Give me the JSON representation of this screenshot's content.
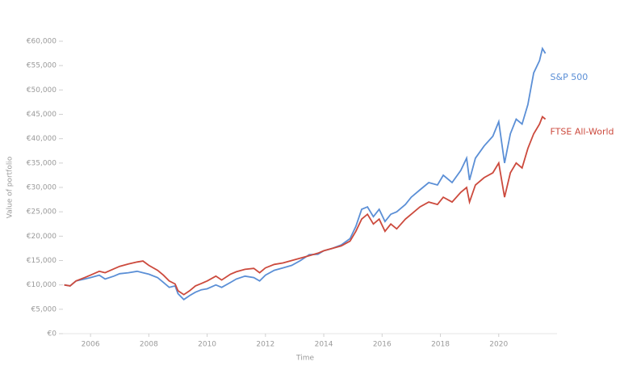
{
  "chart_data": {
    "type": "line",
    "x_label": "Time",
    "y_label": "Value of portfolio",
    "x": [
      2005.1,
      2005.3,
      2005.5,
      2005.8,
      2006.0,
      2006.3,
      2006.5,
      2006.8,
      2007.0,
      2007.3,
      2007.6,
      2007.8,
      2008.0,
      2008.3,
      2008.5,
      2008.7,
      2008.9,
      2009.0,
      2009.2,
      2009.4,
      2009.6,
      2009.8,
      2010.0,
      2010.3,
      2010.5,
      2010.8,
      2011.0,
      2011.3,
      2011.6,
      2011.8,
      2012.0,
      2012.3,
      2012.6,
      2012.9,
      2013.2,
      2013.5,
      2013.8,
      2014.0,
      2014.3,
      2014.6,
      2014.9,
      2015.1,
      2015.3,
      2015.5,
      2015.7,
      2015.9,
      2016.1,
      2016.3,
      2016.5,
      2016.8,
      2017.0,
      2017.3,
      2017.6,
      2017.9,
      2018.1,
      2018.4,
      2018.7,
      2018.9,
      2019.0,
      2019.2,
      2019.5,
      2019.8,
      2020.0,
      2020.2,
      2020.4,
      2020.6,
      2020.8,
      2021.0,
      2021.2,
      2021.4,
      2021.5,
      2021.6
    ],
    "series": [
      {
        "name": "S&P 500",
        "color": "#5b8fd6",
        "values": [
          10000,
          9800,
          10800,
          11200,
          11500,
          12000,
          11200,
          11800,
          12300,
          12500,
          12800,
          12500,
          12200,
          11500,
          10500,
          9500,
          9800,
          8200,
          7000,
          7800,
          8500,
          9000,
          9200,
          10000,
          9500,
          10500,
          11200,
          11800,
          11500,
          10800,
          12000,
          13000,
          13500,
          14000,
          15000,
          16200,
          16300,
          17000,
          17500,
          18200,
          19500,
          22000,
          25500,
          26000,
          24000,
          25500,
          23000,
          24500,
          25000,
          26500,
          28000,
          29500,
          31000,
          30500,
          32500,
          31000,
          33500,
          36000,
          31500,
          36000,
          38500,
          40500,
          43500,
          35000,
          41000,
          44000,
          43000,
          47000,
          53500,
          56000,
          58500,
          57500
        ]
      },
      {
        "name": "FTSE All-World",
        "color": "#cc4a3d",
        "values": [
          10000,
          9800,
          10800,
          11500,
          12000,
          12800,
          12500,
          13300,
          13800,
          14300,
          14700,
          14900,
          14000,
          13000,
          12000,
          10800,
          10200,
          8800,
          8000,
          8800,
          9800,
          10300,
          10800,
          11800,
          11000,
          12200,
          12700,
          13200,
          13400,
          12500,
          13500,
          14200,
          14500,
          15000,
          15500,
          16000,
          16500,
          17000,
          17500,
          18000,
          19000,
          21000,
          23500,
          24500,
          22500,
          23500,
          21000,
          22500,
          21500,
          23500,
          24500,
          26000,
          27000,
          26500,
          28000,
          27000,
          29000,
          30000,
          27000,
          30500,
          32000,
          33000,
          35000,
          28000,
          33000,
          35000,
          34000,
          38000,
          41000,
          43000,
          44500,
          44000
        ]
      }
    ],
    "xlim": [
      2005.0,
      2022.0
    ],
    "xticks": [
      2006,
      2008,
      2010,
      2012,
      2014,
      2016,
      2018,
      2020
    ],
    "ylim": [
      0,
      60000
    ],
    "yticks": [
      {
        "value": 0,
        "label": "€0"
      },
      {
        "value": 5000,
        "label": "€5,000"
      },
      {
        "value": 10000,
        "label": "€10,000"
      },
      {
        "value": 15000,
        "label": "€15,000"
      },
      {
        "value": 20000,
        "label": "€20,000"
      },
      {
        "value": 25000,
        "label": "€25,000"
      },
      {
        "value": 30000,
        "label": "€30,000"
      },
      {
        "value": 35000,
        "label": "€35,000"
      },
      {
        "value": 40000,
        "label": "€40,000"
      },
      {
        "value": 45000,
        "label": "€45,000"
      },
      {
        "value": 50000,
        "label": "€50,000"
      },
      {
        "value": 55000,
        "label": "€55,000"
      },
      {
        "value": 60000,
        "label": "€60,000"
      }
    ],
    "grid": false
  }
}
